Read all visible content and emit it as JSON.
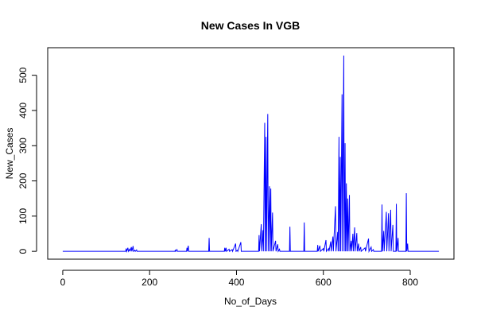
{
  "chart_data": {
    "type": "line",
    "title": "New Cases In VGB",
    "xlabel": "No_of_Days",
    "ylabel": "New_Cases",
    "xlim": [
      0,
      866
    ],
    "ylim": [
      0,
      556
    ],
    "x_ticks": [
      0,
      200,
      400,
      600,
      800
    ],
    "y_ticks": [
      0,
      100,
      200,
      300,
      400,
      500
    ],
    "line_color": "#0000ff",
    "grid": false,
    "series": [
      {
        "points": [
          [
            0,
            0
          ],
          [
            145,
            0
          ],
          [
            146,
            8
          ],
          [
            147,
            0
          ],
          [
            150,
            10
          ],
          [
            151,
            0
          ],
          [
            154,
            6
          ],
          [
            155,
            0
          ],
          [
            158,
            12
          ],
          [
            159,
            0
          ],
          [
            162,
            15
          ],
          [
            163,
            0
          ],
          [
            166,
            3
          ],
          [
            167,
            0
          ],
          [
            170,
            4
          ],
          [
            171,
            0
          ],
          [
            258,
            0
          ],
          [
            259,
            3
          ],
          [
            260,
            0
          ],
          [
            263,
            5
          ],
          [
            264,
            0
          ],
          [
            285,
            0
          ],
          [
            286,
            10
          ],
          [
            287,
            0
          ],
          [
            289,
            16
          ],
          [
            290,
            0
          ],
          [
            336,
            0
          ],
          [
            337,
            38
          ],
          [
            338,
            0
          ],
          [
            372,
            0
          ],
          [
            373,
            10
          ],
          [
            374,
            0
          ],
          [
            376,
            10
          ],
          [
            377,
            0
          ],
          [
            383,
            6
          ],
          [
            384,
            0
          ],
          [
            390,
            5
          ],
          [
            391,
            0
          ],
          [
            398,
            22
          ],
          [
            399,
            0
          ],
          [
            402,
            3
          ],
          [
            403,
            0
          ],
          [
            410,
            26
          ],
          [
            411,
            0
          ],
          [
            451,
            0
          ],
          [
            452,
            46
          ],
          [
            453,
            0
          ],
          [
            457,
            77
          ],
          [
            458,
            0
          ],
          [
            461,
            60
          ],
          [
            462,
            0
          ],
          [
            465,
            365
          ],
          [
            466,
            0
          ],
          [
            468,
            325
          ],
          [
            469,
            0
          ],
          [
            472,
            390
          ],
          [
            473,
            0
          ],
          [
            476,
            185
          ],
          [
            477,
            0
          ],
          [
            479,
            178
          ],
          [
            480,
            0
          ],
          [
            483,
            110
          ],
          [
            484,
            0
          ],
          [
            490,
            30
          ],
          [
            491,
            0
          ],
          [
            495,
            20
          ],
          [
            496,
            0
          ],
          [
            499,
            6
          ],
          [
            500,
            0
          ],
          [
            522,
            0
          ],
          [
            523,
            70
          ],
          [
            524,
            0
          ],
          [
            555,
            0
          ],
          [
            556,
            82
          ],
          [
            557,
            0
          ],
          [
            586,
            0
          ],
          [
            587,
            18
          ],
          [
            588,
            0
          ],
          [
            592,
            16
          ],
          [
            593,
            0
          ],
          [
            600,
            8
          ],
          [
            601,
            0
          ],
          [
            606,
            32
          ],
          [
            607,
            0
          ],
          [
            612,
            8
          ],
          [
            613,
            0
          ],
          [
            617,
            28
          ],
          [
            618,
            0
          ],
          [
            622,
            42
          ],
          [
            623,
            0
          ],
          [
            628,
            128
          ],
          [
            629,
            0
          ],
          [
            633,
            55
          ],
          [
            634,
            0
          ],
          [
            636,
            325
          ],
          [
            637,
            0
          ],
          [
            639,
            268
          ],
          [
            640,
            0
          ],
          [
            643,
            446
          ],
          [
            644,
            0
          ],
          [
            647,
            556
          ],
          [
            648,
            0
          ],
          [
            650,
            307
          ],
          [
            651,
            0
          ],
          [
            653,
            193
          ],
          [
            654,
            0
          ],
          [
            656,
            150
          ],
          [
            657,
            0
          ],
          [
            660,
            160
          ],
          [
            661,
            0
          ],
          [
            664,
            30
          ],
          [
            665,
            0
          ],
          [
            668,
            50
          ],
          [
            669,
            0
          ],
          [
            672,
            68
          ],
          [
            673,
            0
          ],
          [
            677,
            52
          ],
          [
            678,
            0
          ],
          [
            681,
            22
          ],
          [
            682,
            0
          ],
          [
            686,
            12
          ],
          [
            687,
            0
          ],
          [
            696,
            10
          ],
          [
            697,
            0
          ],
          [
            704,
            36
          ],
          [
            705,
            0
          ],
          [
            710,
            12
          ],
          [
            711,
            0
          ],
          [
            715,
            5
          ],
          [
            716,
            0
          ],
          [
            734,
            0
          ],
          [
            735,
            133
          ],
          [
            736,
            0
          ],
          [
            739,
            58
          ],
          [
            740,
            0
          ],
          [
            745,
            112
          ],
          [
            746,
            0
          ],
          [
            750,
            108
          ],
          [
            751,
            0
          ],
          [
            755,
            118
          ],
          [
            756,
            0
          ],
          [
            760,
            75
          ],
          [
            761,
            0
          ],
          [
            767,
            0
          ],
          [
            768,
            135
          ],
          [
            769,
            0
          ],
          [
            772,
            38
          ],
          [
            773,
            0
          ],
          [
            790,
            0
          ],
          [
            791,
            165
          ],
          [
            792,
            0
          ],
          [
            794,
            22
          ],
          [
            795,
            0
          ],
          [
            866,
            0
          ]
        ]
      }
    ]
  }
}
